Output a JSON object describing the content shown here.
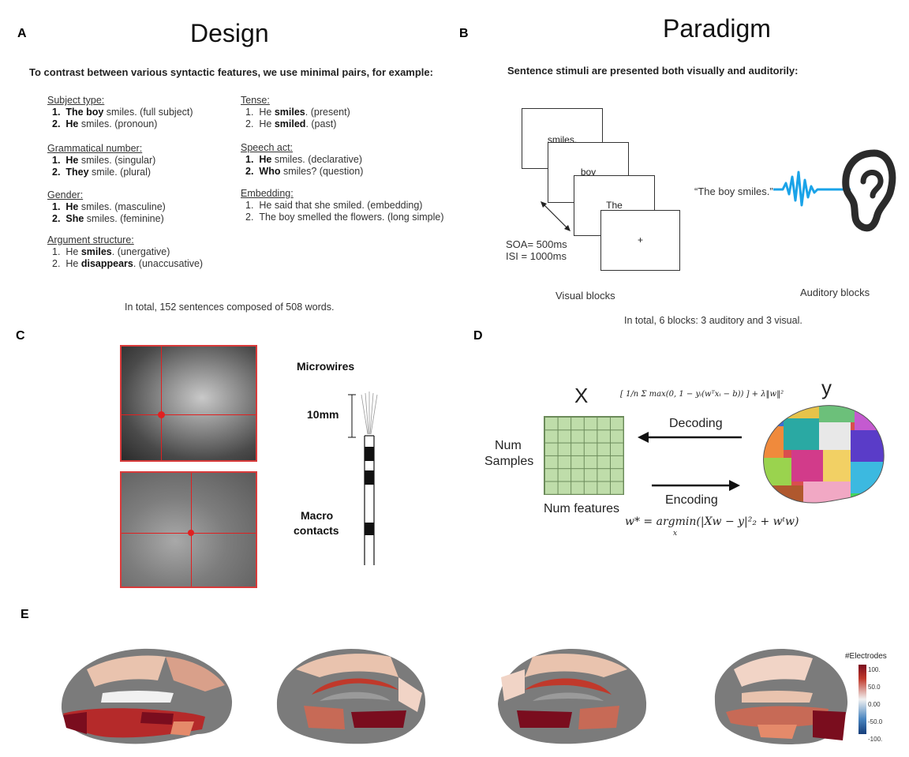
{
  "panelA": {
    "label": "A",
    "title": "Design",
    "lead": "To contrast between various syntactic features, we use minimal pairs, for example:",
    "left": [
      {
        "category": "Subject type:",
        "items": [
          {
            "num": "1.",
            "bold": "The boy",
            "rest": " smiles. (full subject)",
            "numBold": true
          },
          {
            "num": "2.",
            "bold": "He",
            "rest": " smiles. (pronoun)",
            "numBold": true
          }
        ]
      },
      {
        "category": "Grammatical number:",
        "items": [
          {
            "num": "1.",
            "bold": "He",
            "rest": " smiles. (singular)",
            "numBold": true
          },
          {
            "num": "2.",
            "bold": "They",
            "rest": " smile. (plural)",
            "numBold": true
          }
        ]
      },
      {
        "category": "Gender:",
        "items": [
          {
            "num": "1.",
            "bold": "He",
            "rest": " smiles. (masculine)",
            "numBold": true
          },
          {
            "num": "2.",
            "bold": "She",
            "rest": " smiles. (feminine)",
            "numBold": true
          }
        ]
      },
      {
        "category": "Argument structure:",
        "items": [
          {
            "num": "1.",
            "pre": "He ",
            "bold": "smiles",
            "rest": ". (unergative)",
            "numBold": false
          },
          {
            "num": "2.",
            "pre": "He ",
            "bold": "disappears",
            "rest": ". (unaccusative)",
            "numBold": false
          }
        ]
      }
    ],
    "right": [
      {
        "category": "Tense:",
        "items": [
          {
            "num": "1.",
            "pre": "He ",
            "bold": "smiles",
            "rest": ". (present)",
            "numBold": false
          },
          {
            "num": "2.",
            "pre": "He ",
            "bold": "smiled",
            "rest": ". (past)",
            "numBold": false
          }
        ]
      },
      {
        "category": "Speech act:",
        "items": [
          {
            "num": "1.",
            "bold": "He",
            "rest": " smiles. (declarative)",
            "numBold": true
          },
          {
            "num": "2.",
            "bold": "Who",
            "rest": " smiles? (question)",
            "numBold": true
          }
        ]
      },
      {
        "category": "Embedding:",
        "items": [
          {
            "num": "1.",
            "pre": "He said that she smiled. (embedding)",
            "bold": "",
            "rest": "",
            "numBold": false
          },
          {
            "num": "2.",
            "pre": "The boy smelled the flowers. (long simple)",
            "bold": "",
            "rest": "",
            "numBold": false
          }
        ]
      }
    ],
    "total": "In total, 152 sentences composed of 508 words."
  },
  "panelB": {
    "label": "B",
    "title": "Paradigm",
    "lead": "Sentence stimuli are presented both visually and auditorily:",
    "slides": [
      "smiles.",
      "boy",
      "The",
      "+"
    ],
    "soa": "SOA= 500ms",
    "isi": "ISI = 1000ms",
    "quote": "“The boy smiles.”",
    "visual": "Visual blocks",
    "auditory": "Auditory blocks",
    "total": "In total, 6 blocks: 3 auditory and 3 visual.",
    "colors": {
      "wave": "#1aa3e8",
      "ear": "#2b2b2b"
    }
  },
  "panelC": {
    "label": "C",
    "microwires": "Microwires",
    "scale": "10mm",
    "macro1": "Macro",
    "macro2": "contacts",
    "colors": {
      "crosshair": "#e02020"
    }
  },
  "panelD": {
    "label": "D",
    "x": "X",
    "y": "y",
    "numSamples1": "Num",
    "numSamples2": "Samples",
    "numFeatures": "Num features",
    "decoding": "Decoding",
    "encoding": "Encoding",
    "decodingFormula": "[ 1/n Σ max(0, 1 − yᵢ(wᵀxᵢ − b)) ] + λ‖w‖²",
    "encodingFormula": "w* = argmin(|Xw − y|²₂ + wᵗw)",
    "encodingSub": "x",
    "colors": {
      "grid": "#bfddaa"
    }
  },
  "panelE": {
    "label": "E",
    "legendTitle": "#Electrodes",
    "ticks": [
      "100.",
      "50.0",
      "0.00",
      "-50.0",
      "-100."
    ],
    "colors": {
      "high": "#7a0d1e",
      "mid": "#f1f1f1",
      "low": "#153d7a",
      "cortex": "#7b7b7b"
    }
  }
}
